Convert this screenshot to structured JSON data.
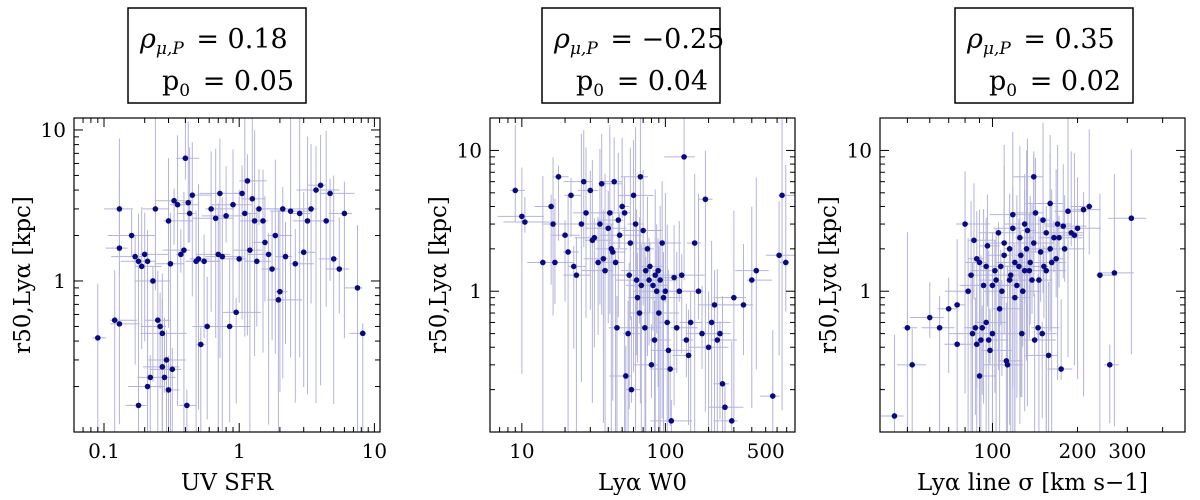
{
  "chart_data": [
    {
      "type": "scatter",
      "annotation": {
        "rho_label": "ρμ,P",
        "rho_value": "= 0.18",
        "p_label": "p0",
        "p_value": "= 0.05"
      },
      "xlabel": "UV SFR",
      "ylabel": "r50,Lyα [kpc]",
      "xscale": "log",
      "yscale": "log",
      "xlim": [
        0.06,
        11
      ],
      "ylim": [
        0.1,
        12
      ],
      "xticks": [
        {
          "v": 0.1,
          "label": "0.1"
        },
        {
          "v": 1,
          "label": "1"
        },
        {
          "v": 10,
          "label": "10"
        }
      ],
      "yticks": [
        {
          "v": 1,
          "label": "1"
        },
        {
          "v": 10,
          "label": "10"
        }
      ],
      "points": [
        [
          0.09,
          0.42
        ],
        [
          0.12,
          0.55
        ],
        [
          0.13,
          0.52
        ],
        [
          0.13,
          1.65
        ],
        [
          0.13,
          3.0
        ],
        [
          0.16,
          2.0
        ],
        [
          0.17,
          1.45
        ],
        [
          0.18,
          1.35
        ],
        [
          0.18,
          0.15
        ],
        [
          0.19,
          1.25
        ],
        [
          0.2,
          1.5
        ],
        [
          0.21,
          1.35
        ],
        [
          0.21,
          0.2
        ],
        [
          0.22,
          0.23
        ],
        [
          0.23,
          1.0
        ],
        [
          0.24,
          3.0
        ],
        [
          0.25,
          0.55
        ],
        [
          0.26,
          0.5
        ],
        [
          0.27,
          0.45
        ],
        [
          0.27,
          0.27
        ],
        [
          0.28,
          0.23
        ],
        [
          0.29,
          0.3
        ],
        [
          0.3,
          0.19
        ],
        [
          0.3,
          2.5
        ],
        [
          0.31,
          1.3
        ],
        [
          0.32,
          0.26
        ],
        [
          0.33,
          3.4
        ],
        [
          0.35,
          3.2
        ],
        [
          0.37,
          1.5
        ],
        [
          0.39,
          1.6
        ],
        [
          0.4,
          6.5
        ],
        [
          0.41,
          0.15
        ],
        [
          0.42,
          3.3
        ],
        [
          0.43,
          2.8
        ],
        [
          0.45,
          3.7
        ],
        [
          0.48,
          1.35
        ],
        [
          0.5,
          1.4
        ],
        [
          0.52,
          0.38
        ],
        [
          0.55,
          1.35
        ],
        [
          0.58,
          0.5
        ],
        [
          0.62,
          3.0
        ],
        [
          0.67,
          2.6
        ],
        [
          0.7,
          1.5
        ],
        [
          0.72,
          3.8
        ],
        [
          0.75,
          1.45
        ],
        [
          0.8,
          2.7
        ],
        [
          0.85,
          0.5
        ],
        [
          0.9,
          3.2
        ],
        [
          0.95,
          0.62
        ],
        [
          1.0,
          1.4
        ],
        [
          1.05,
          3.8
        ],
        [
          1.1,
          2.8
        ],
        [
          1.15,
          4.6
        ],
        [
          1.2,
          1.6
        ],
        [
          1.25,
          3.5
        ],
        [
          1.3,
          2.5
        ],
        [
          1.35,
          1.35
        ],
        [
          1.4,
          3.0
        ],
        [
          1.5,
          2.5
        ],
        [
          1.55,
          1.8
        ],
        [
          1.65,
          1.5
        ],
        [
          1.75,
          1.2
        ],
        [
          1.85,
          2.0
        ],
        [
          1.95,
          0.75
        ],
        [
          2.0,
          0.85
        ],
        [
          2.1,
          3.0
        ],
        [
          2.2,
          1.45
        ],
        [
          2.4,
          2.9
        ],
        [
          2.6,
          1.3
        ],
        [
          2.8,
          2.8
        ],
        [
          3.0,
          1.55
        ],
        [
          3.2,
          2.5
        ],
        [
          3.4,
          3.0
        ],
        [
          3.7,
          4.0
        ],
        [
          4.0,
          4.3
        ],
        [
          4.4,
          2.5
        ],
        [
          4.7,
          3.8
        ],
        [
          5.0,
          1.4
        ],
        [
          5.5,
          1.2
        ],
        [
          6.0,
          2.8
        ],
        [
          7.5,
          0.9
        ],
        [
          8.2,
          0.45
        ]
      ]
    },
    {
      "type": "scatter",
      "annotation": {
        "rho_label": "ρμ,P",
        "rho_value": "= −0.25",
        "p_label": "p0",
        "p_value": "= 0.04"
      },
      "xlabel": "Lyα W0",
      "ylabel": "r50,Lyα [kpc]",
      "xscale": "log",
      "yscale": "log",
      "xlim": [
        6,
        800
      ],
      "ylim": [
        0.1,
        17
      ],
      "xticks": [
        {
          "v": 10,
          "label": "10"
        },
        {
          "v": 100,
          "label": "100"
        },
        {
          "v": 500,
          "label": "500"
        }
      ],
      "yticks": [
        {
          "v": 1,
          "label": "1"
        },
        {
          "v": 10,
          "label": "10"
        }
      ],
      "points": [
        [
          9,
          5.2
        ],
        [
          10,
          3.4
        ],
        [
          10.5,
          3.1
        ],
        [
          14,
          1.6
        ],
        [
          16,
          4.0
        ],
        [
          16.5,
          3.0
        ],
        [
          17,
          1.6
        ],
        [
          18,
          6.5
        ],
        [
          20,
          2.5
        ],
        [
          21,
          1.9
        ],
        [
          22,
          4.8
        ],
        [
          23,
          1.5
        ],
        [
          24,
          1.3
        ],
        [
          26,
          3.0
        ],
        [
          27,
          6.0
        ],
        [
          28,
          3.6
        ],
        [
          30,
          5.2
        ],
        [
          31,
          2.3
        ],
        [
          32,
          2.4
        ],
        [
          34,
          1.6
        ],
        [
          35,
          3.0
        ],
        [
          36,
          5.8
        ],
        [
          37,
          1.7
        ],
        [
          38,
          1.4
        ],
        [
          40,
          2.8
        ],
        [
          41,
          3.6
        ],
        [
          42,
          2.0
        ],
        [
          43,
          1.9
        ],
        [
          44,
          6.0
        ],
        [
          45,
          1.6
        ],
        [
          46,
          0.55
        ],
        [
          47,
          3.2
        ],
        [
          48,
          2.5
        ],
        [
          50,
          4.0
        ],
        [
          52,
          3.6
        ],
        [
          53,
          0.25
        ],
        [
          55,
          0.5
        ],
        [
          56,
          1.3
        ],
        [
          57,
          2.2
        ],
        [
          58,
          0.2
        ],
        [
          60,
          4.8
        ],
        [
          62,
          3.0
        ],
        [
          63,
          1.2
        ],
        [
          64,
          0.9
        ],
        [
          66,
          0.7
        ],
        [
          67,
          6.5
        ],
        [
          68,
          1.1
        ],
        [
          70,
          2.7
        ],
        [
          72,
          0.55
        ],
        [
          73,
          1.4
        ],
        [
          75,
          2.0
        ],
        [
          77,
          1.2
        ],
        [
          78,
          1.5
        ],
        [
          80,
          0.3
        ],
        [
          82,
          1.1
        ],
        [
          84,
          0.45
        ],
        [
          85,
          1.3
        ],
        [
          87,
          1.0
        ],
        [
          89,
          1.4
        ],
        [
          90,
          0.7
        ],
        [
          92,
          1.2
        ],
        [
          95,
          2.2
        ],
        [
          97,
          0.9
        ],
        [
          100,
          1.0
        ],
        [
          103,
          0.6
        ],
        [
          105,
          0.38
        ],
        [
          108,
          0.28
        ],
        [
          110,
          0.12
        ],
        [
          115,
          1.25
        ],
        [
          120,
          0.55
        ],
        [
          125,
          1.0
        ],
        [
          130,
          1.3
        ],
        [
          135,
          9.0
        ],
        [
          140,
          0.45
        ],
        [
          145,
          0.35
        ],
        [
          150,
          0.6
        ],
        [
          160,
          2.2
        ],
        [
          170,
          1.0
        ],
        [
          180,
          0.5
        ],
        [
          190,
          4.5
        ],
        [
          200,
          0.4
        ],
        [
          210,
          0.6
        ],
        [
          220,
          0.8
        ],
        [
          230,
          0.45
        ],
        [
          240,
          0.5
        ],
        [
          250,
          0.22
        ],
        [
          260,
          0.15
        ],
        [
          290,
          0.12
        ],
        [
          300,
          0.9
        ],
        [
          350,
          0.8
        ],
        [
          400,
          1.2
        ],
        [
          430,
          1.4
        ],
        [
          560,
          0.18
        ],
        [
          620,
          1.8
        ],
        [
          650,
          4.8
        ],
        [
          690,
          1.6
        ]
      ]
    },
    {
      "type": "scatter",
      "annotation": {
        "rho_label": "ρμ,P",
        "rho_value": "= 0.35",
        "p_label": "p0",
        "p_value": "= 0.02"
      },
      "xlabel": "Lyα line σ [km s−1]",
      "ylabel": "r50,Lyα [kpc]",
      "xscale": "log",
      "yscale": "log",
      "xlim": [
        40,
        480
      ],
      "ylim": [
        0.1,
        17
      ],
      "xticks": [
        {
          "v": 100,
          "label": "100"
        },
        {
          "v": 200,
          "label": "200"
        },
        {
          "v": 300,
          "label": "300"
        }
      ],
      "yticks": [
        {
          "v": 1,
          "label": "1"
        },
        {
          "v": 10,
          "label": "10"
        }
      ],
      "points": [
        [
          45,
          0.13
        ],
        [
          50,
          0.55
        ],
        [
          52,
          0.3
        ],
        [
          60,
          0.65
        ],
        [
          65,
          0.55
        ],
        [
          70,
          0.75
        ],
        [
          75,
          0.8
        ],
        [
          75,
          0.42
        ],
        [
          80,
          3.0
        ],
        [
          82,
          1.0
        ],
        [
          84,
          1.3
        ],
        [
          85,
          0.5
        ],
        [
          86,
          2.3
        ],
        [
          87,
          0.55
        ],
        [
          88,
          0.42
        ],
        [
          88,
          1.7
        ],
        [
          90,
          1.6
        ],
        [
          90,
          0.25
        ],
        [
          91,
          0.45
        ],
        [
          92,
          0.55
        ],
        [
          93,
          1.1
        ],
        [
          95,
          1.5
        ],
        [
          95,
          0.6
        ],
        [
          96,
          2.1
        ],
        [
          97,
          0.45
        ],
        [
          98,
          0.38
        ],
        [
          100,
          1.1
        ],
        [
          100,
          0.5
        ],
        [
          102,
          1.4
        ],
        [
          103,
          1.2
        ],
        [
          105,
          2.6
        ],
        [
          106,
          0.75
        ],
        [
          107,
          1.5
        ],
        [
          108,
          1.0
        ],
        [
          110,
          1.8
        ],
        [
          110,
          2.2
        ],
        [
          112,
          0.32
        ],
        [
          113,
          0.3
        ],
        [
          115,
          1.2
        ],
        [
          115,
          2.0
        ],
        [
          116,
          1.3
        ],
        [
          118,
          2.8
        ],
        [
          118,
          3.5
        ],
        [
          120,
          1.6
        ],
        [
          120,
          0.9
        ],
        [
          122,
          1.1
        ],
        [
          124,
          1.5
        ],
        [
          125,
          2.4
        ],
        [
          126,
          1.8
        ],
        [
          127,
          0.5
        ],
        [
          128,
          1.0
        ],
        [
          130,
          3.0
        ],
        [
          130,
          1.4
        ],
        [
          132,
          2.0
        ],
        [
          133,
          2.7
        ],
        [
          135,
          1.4
        ],
        [
          136,
          1.6
        ],
        [
          138,
          1.2
        ],
        [
          140,
          6.5
        ],
        [
          140,
          2.2
        ],
        [
          141,
          0.45
        ],
        [
          142,
          3.6
        ],
        [
          145,
          0.55
        ],
        [
          146,
          1.2
        ],
        [
          148,
          1.9
        ],
        [
          150,
          0.5
        ],
        [
          151,
          3.2
        ],
        [
          152,
          1.5
        ],
        [
          155,
          2.6
        ],
        [
          155,
          1.4
        ],
        [
          158,
          0.35
        ],
        [
          160,
          4.2
        ],
        [
          160,
          2.0
        ],
        [
          162,
          1.6
        ],
        [
          165,
          2.4
        ],
        [
          168,
          1.7
        ],
        [
          170,
          3.0
        ],
        [
          172,
          2.4
        ],
        [
          175,
          0.28
        ],
        [
          178,
          2.9
        ],
        [
          180,
          2.0
        ],
        [
          185,
          3.7
        ],
        [
          190,
          2.6
        ],
        [
          195,
          2.5
        ],
        [
          200,
          2.8
        ],
        [
          210,
          3.8
        ],
        [
          220,
          4.0
        ],
        [
          240,
          1.3
        ],
        [
          260,
          0.3
        ],
        [
          270,
          1.35
        ],
        [
          310,
          3.3
        ]
      ]
    }
  ]
}
